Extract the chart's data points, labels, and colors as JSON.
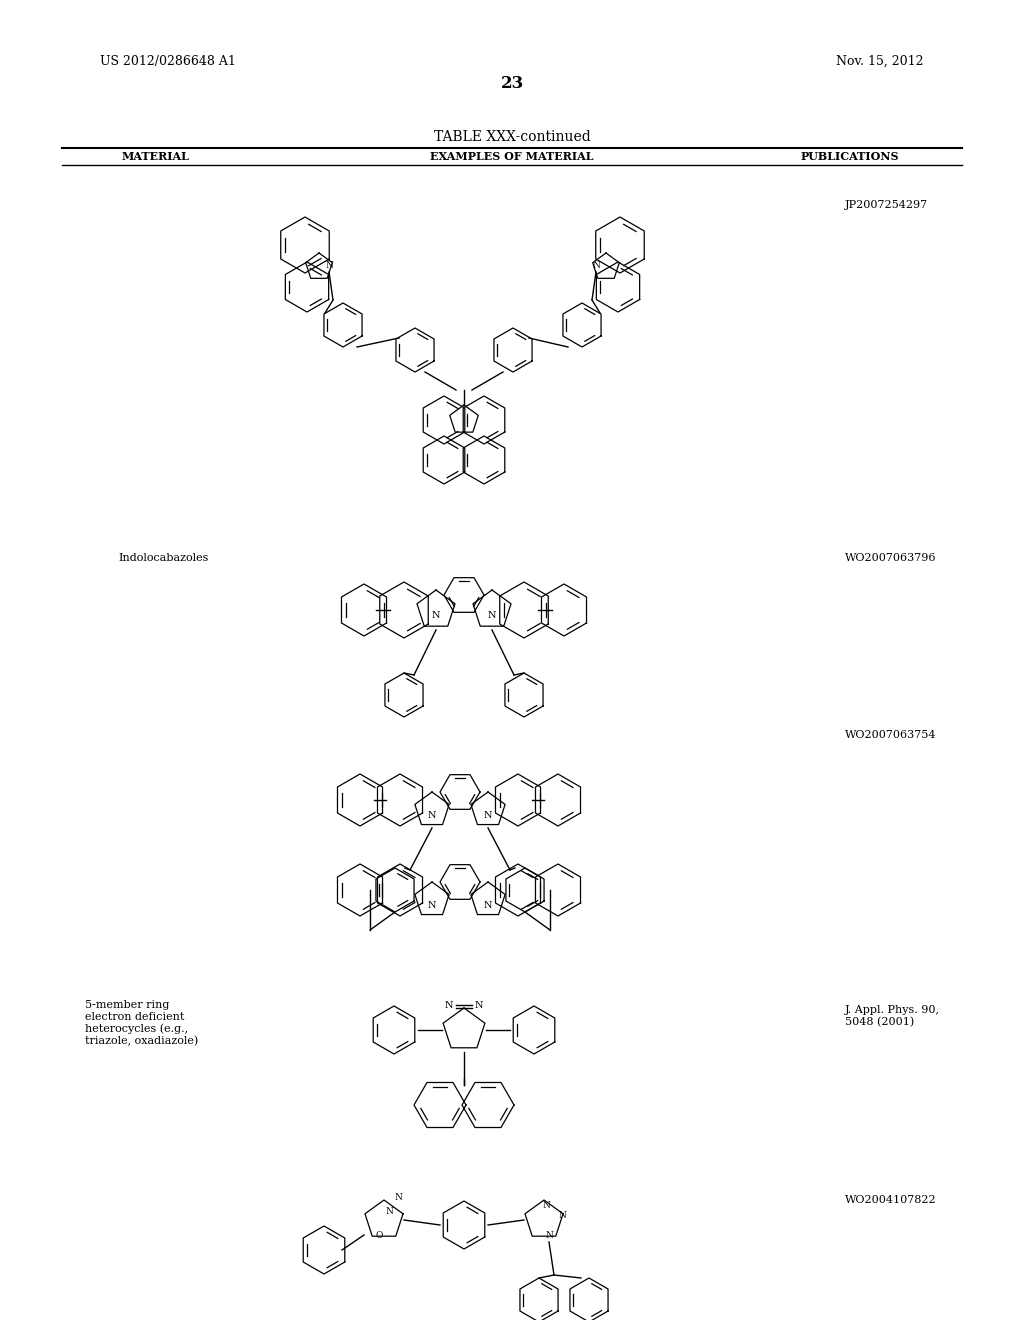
{
  "page_header_left": "US 2012/0286648 A1",
  "page_header_right": "Nov. 15, 2012",
  "page_number": "23",
  "table_title": "TABLE XXX-continued",
  "col1_header": "MATERIAL",
  "col2_header": "EXAMPLES OF MATERIAL",
  "col3_header": "PUBLICATIONS",
  "row1_pub": "JP2007254297",
  "row2_material": "Indolocabazoles",
  "row2_pub": "WO2007063796",
  "row3_pub": "WO2007063754",
  "row4_material": "5-member ring\nelectron deficient\nheterocycles (e.g.,\ntriazole, oxadiazole)",
  "row4_pub": "J. Appl. Phys. 90,\n5048 (2001)",
  "row5_pub": "WO2004107822",
  "bg_color": "#ffffff",
  "text_color": "#000000",
  "line_color": "#000000",
  "font_size_header": 9,
  "font_size_body": 8,
  "font_size_page": 9
}
